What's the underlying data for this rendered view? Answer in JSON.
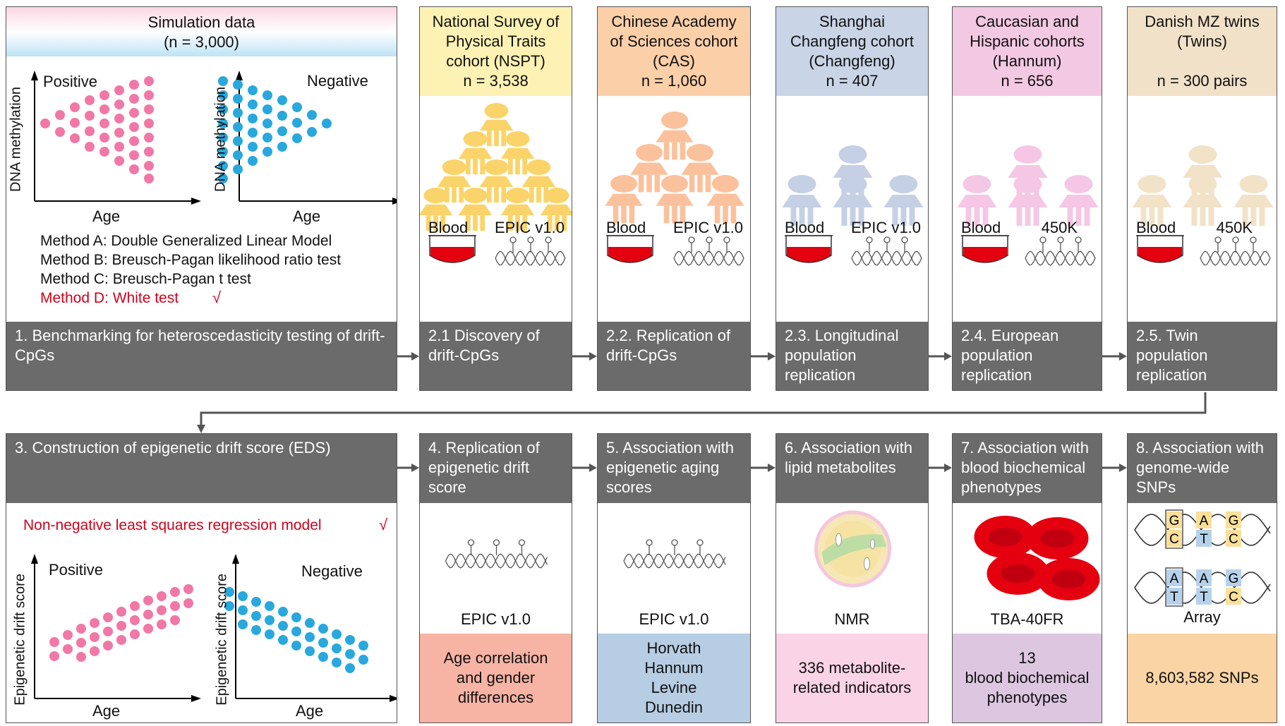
{
  "panel1": {
    "header_line1": "Simulation data",
    "header_line2": "(n = 3,000)",
    "pos_label": "Positive",
    "neg_label": "Negative",
    "ylabel": "DNA methylation",
    "xlabel": "Age",
    "methods": [
      "Method A: Double Generalized Linear Model",
      "Method B: Breusch-Pagan likelihood ratio test",
      "Method C: Breusch-Pagan t test",
      "Method D: White test"
    ],
    "check": "√",
    "bar_text": "1. Benchmarking for heteroscedasticity testing of drift-CpGs"
  },
  "cohorts": [
    {
      "lines": [
        "National Survey of",
        "Physical Traits",
        "cohort (NSPT)",
        "n = 3,538"
      ],
      "sample": "Blood",
      "platform": "EPIC v1.0",
      "bar": [
        "2.1 Discovery of",
        "drift-CpGs"
      ],
      "color": "#fdf2b4",
      "person": "#fad46a"
    },
    {
      "lines": [
        "Chinese Academy",
        "of Sciences cohort",
        "(CAS)",
        "n = 1,060"
      ],
      "sample": "Blood",
      "platform": "EPIC v1.0",
      "bar": [
        "2.2. Replication of",
        "drift-CpGs"
      ],
      "color": "#fbcfa8",
      "person": "#fbc19c"
    },
    {
      "lines": [
        "Shanghai",
        "Changfeng  cohort",
        "(Changfeng)",
        "n = 407"
      ],
      "sample": "Blood",
      "platform": "EPIC v1.0",
      "bar": [
        "2.3. Longitudinal",
        "population",
        "replication"
      ],
      "color": "#c9d4e6",
      "person": "#c5d0e5"
    },
    {
      "lines": [
        "Caucasian and",
        "Hispanic cohorts",
        "(Hannum)",
        "n = 656"
      ],
      "sample": "Blood",
      "platform": "450K",
      "bar": [
        "2.4. European",
        "population",
        "replication"
      ],
      "color": "#f3c8e3",
      "person": "#f5c7e4"
    },
    {
      "lines": [
        "Danish MZ twins",
        "(Twins)",
        "",
        "n = 300 pairs"
      ],
      "sample": "Blood",
      "platform": "450K",
      "bar": [
        "2.5. Twin",
        "population",
        "replication"
      ],
      "color": "#f1e1c8",
      "person": "#f1e2c8"
    }
  ],
  "panel3": {
    "bar_text": "3. Construction of epigenetic drift score (EDS)",
    "model": "Non-negative least squares regression model",
    "check": "√",
    "pos_label": "Positive",
    "neg_label": "Negative",
    "ylabel": "Epigenetic drift score",
    "xlabel": "Age"
  },
  "steps": [
    {
      "bar": [
        "4. Replication of",
        "epigenetic drift",
        "score"
      ],
      "tool": "EPIC v1.0",
      "result": [
        "Age correlation",
        "and gender",
        "differences"
      ],
      "color": "#f7b3a4"
    },
    {
      "bar": [
        "5. Association with",
        "epigenetic aging",
        "scores"
      ],
      "tool": "EPIC v1.0",
      "result": [
        "Horvath",
        "Hannum",
        "Levine",
        "Dunedin"
      ],
      "color": "#b7cde3"
    },
    {
      "bar": [
        "6. Association with",
        "lipid metabolites"
      ],
      "tool": "NMR",
      "result": [
        "336 metabolite-",
        "related indicators"
      ],
      "color": "#fbd3e6"
    },
    {
      "bar": [
        "7. Association with",
        "blood biochemical",
        "phenotypes"
      ],
      "tool": "TBA-40FR",
      "result": [
        "13",
        "blood biochemical",
        "phenotypes"
      ],
      "color": "#dcc6e0"
    },
    {
      "bar": [
        "8. Association with",
        "genome-wide",
        "SNPs"
      ],
      "tool": "Array",
      "result": [
        "8,603,582 SNPs"
      ],
      "color": "#fad4a4"
    }
  ],
  "snp_letters": {
    "top": [
      "G",
      "A",
      "G"
    ],
    "top_pair": [
      "C",
      "T",
      "C"
    ],
    "bottom": [
      "A",
      "A",
      "G"
    ],
    "bottom_pair": [
      "T",
      "T",
      "C"
    ]
  },
  "colors": {
    "bar_gray": "#6b6b6b",
    "pink_dot": "#f178a6",
    "blue_dot": "#29a8dd",
    "red": "#d0021b"
  }
}
